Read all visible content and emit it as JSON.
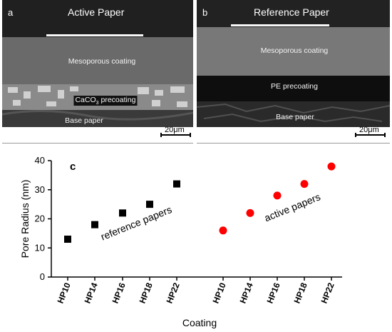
{
  "panel_a": {
    "letter": "a",
    "title": "Active Paper",
    "layers": [
      "Mesoporous coating",
      "CaCO3 precoating",
      "Base paper"
    ],
    "scale": "20μm"
  },
  "panel_b": {
    "letter": "b",
    "title": "Reference Paper",
    "layers": [
      "Mesoporous coating",
      "PE precoating",
      "Base paper"
    ],
    "scale": "20μm"
  },
  "chart_data": {
    "type": "scatter",
    "panel_letter": "c",
    "xlabel": "Coating",
    "ylabel": "Pore Radius (nm)",
    "ylim": [
      0,
      40
    ],
    "yticks": [
      0,
      10,
      20,
      30,
      40
    ],
    "categories": [
      "HP10",
      "HP14",
      "HP16",
      "HP18",
      "HP22",
      "HP10",
      "HP14",
      "HP16",
      "HP18",
      "HP22"
    ],
    "series": [
      {
        "name": "reference papers",
        "x": [
          "HP10",
          "HP14",
          "HP16",
          "HP18",
          "HP22"
        ],
        "values": [
          13,
          18,
          22,
          25,
          32
        ],
        "marker": "square",
        "color": "#000000"
      },
      {
        "name": "active papers",
        "x": [
          "HP10",
          "HP14",
          "HP16",
          "HP18",
          "HP22"
        ],
        "values": [
          16,
          22,
          28,
          32,
          38
        ],
        "marker": "circle",
        "color": "#ff0000"
      }
    ]
  }
}
